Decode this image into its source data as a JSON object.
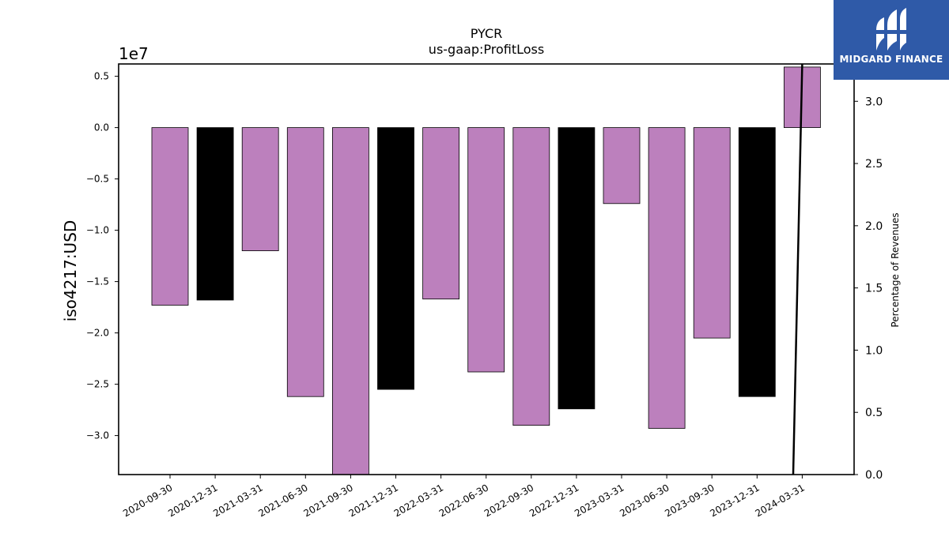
{
  "chart_data": {
    "type": "bar",
    "title": "PYCR",
    "subtitle": "us-gaap:ProfitLoss",
    "ylabel": "iso4217:USD",
    "y_offset_label": "1e7",
    "y2label": "Percentage of Revenues",
    "categories": [
      "2020-09-30",
      "2020-12-31",
      "2021-03-31",
      "2021-06-30",
      "2021-09-30",
      "2021-12-31",
      "2022-03-31",
      "2022-06-30",
      "2022-09-30",
      "2022-12-31",
      "2023-03-31",
      "2023-06-30",
      "2023-09-30",
      "2023-12-31",
      "2024-03-31"
    ],
    "values": [
      -17300000,
      -16800000,
      -12000000,
      -26200000,
      -34000000,
      -25500000,
      -16700000,
      -23800000,
      -29000000,
      -27400000,
      -7400000,
      -29300000,
      -20500000,
      -26200000,
      5900000
    ],
    "bar_colors": [
      "#bc80bd",
      "#000000",
      "#bc80bd",
      "#bc80bd",
      "#bc80bd",
      "#000000",
      "#bc80bd",
      "#bc80bd",
      "#bc80bd",
      "#000000",
      "#bc80bd",
      "#bc80bd",
      "#bc80bd",
      "#000000",
      "#bc80bd"
    ],
    "ylim": [
      -33800000,
      6200000
    ],
    "yticks": [
      0.5,
      0.0,
      -0.5,
      -1.0,
      -1.5,
      -2.0,
      -2.5,
      -3.0
    ],
    "y2lim": [
      0,
      3.3
    ],
    "y2ticks": [
      0.0,
      0.5,
      1.0,
      1.5,
      2.0,
      2.5,
      3.0
    ],
    "line_series": {
      "x_start": 13.8,
      "x_end": 14.0,
      "values": [
        0.0,
        3.3
      ]
    },
    "grid": false,
    "legend": "none"
  },
  "logo": {
    "text": "MIDGARD FINANCE",
    "color": "#2f5aa8"
  }
}
